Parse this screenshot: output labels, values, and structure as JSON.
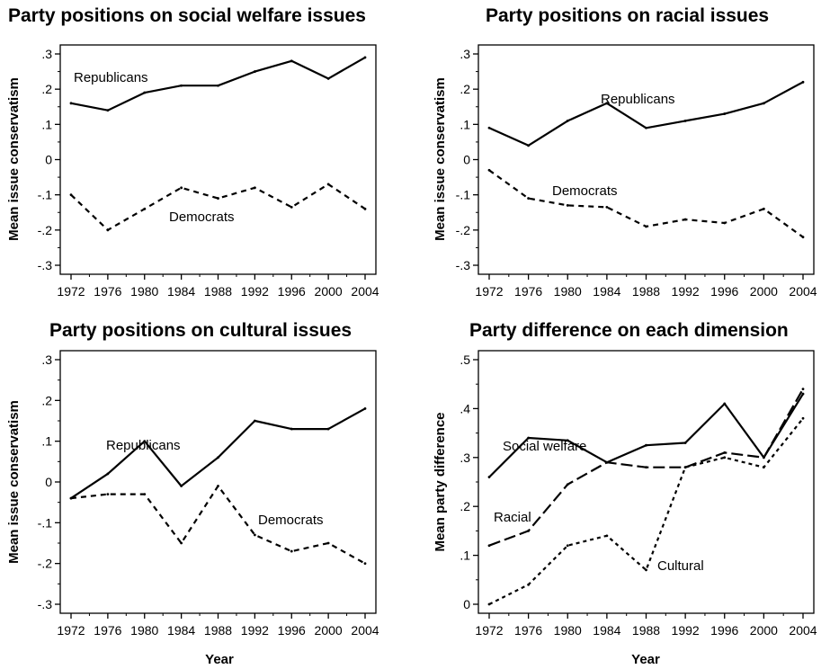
{
  "chart_data": [
    {
      "type": "line",
      "title": "Party positions on social welfare issues",
      "xlabel": "",
      "ylabel": "Mean issue conservatism",
      "x": [
        1972,
        1976,
        1980,
        1984,
        1988,
        1992,
        1996,
        2000,
        2004
      ],
      "ylim": [
        -0.3,
        0.3
      ],
      "yticks": [
        ".3",
        ".2",
        ".1",
        "0",
        "-.1",
        "-.2",
        "-.3"
      ],
      "series": [
        {
          "name": "Republicans",
          "style": "solid",
          "values": [
            0.16,
            0.14,
            0.19,
            0.21,
            0.21,
            0.25,
            0.28,
            0.23,
            0.29
          ]
        },
        {
          "name": "Democrats",
          "style": "dashed",
          "values": [
            -0.1,
            -0.2,
            -0.14,
            -0.08,
            -0.11,
            -0.08,
            -0.135,
            -0.07,
            -0.14
          ]
        }
      ]
    },
    {
      "type": "line",
      "title": "Party positions on racial issues",
      "xlabel": "",
      "ylabel": "Mean issue conservatism",
      "x": [
        1972,
        1976,
        1980,
        1984,
        1988,
        1992,
        1996,
        2000,
        2004
      ],
      "ylim": [
        -0.3,
        0.3
      ],
      "yticks": [
        ".3",
        ".2",
        ".1",
        "0",
        "-.1",
        "-.2",
        "-.3"
      ],
      "series": [
        {
          "name": "Republicans",
          "style": "solid",
          "values": [
            0.09,
            0.04,
            0.11,
            0.16,
            0.09,
            0.11,
            0.13,
            0.16,
            0.22
          ]
        },
        {
          "name": "Democrats",
          "style": "dashed",
          "values": [
            -0.03,
            -0.11,
            -0.13,
            -0.135,
            -0.19,
            -0.17,
            -0.18,
            -0.14,
            -0.22
          ]
        }
      ]
    },
    {
      "type": "line",
      "title": "Party positions on cultural issues",
      "xlabel": "Year",
      "ylabel": "Mean issue conservatism",
      "x": [
        1972,
        1976,
        1980,
        1984,
        1988,
        1992,
        1996,
        2000,
        2004
      ],
      "ylim": [
        -0.3,
        0.3
      ],
      "yticks": [
        ".3",
        ".2",
        ".1",
        "0",
        "-.1",
        "-.2",
        "-.3"
      ],
      "series": [
        {
          "name": "Republicans",
          "style": "solid",
          "values": [
            -0.04,
            0.02,
            0.1,
            -0.01,
            0.06,
            0.15,
            0.13,
            0.13,
            0.18
          ]
        },
        {
          "name": "Democrats",
          "style": "dashed",
          "values": [
            -0.04,
            -0.03,
            -0.03,
            -0.15,
            -0.01,
            -0.13,
            -0.17,
            -0.15,
            -0.2
          ]
        }
      ]
    },
    {
      "type": "line",
      "title": "Party difference on each dimension",
      "xlabel": "Year",
      "ylabel": "Mean party difference",
      "x": [
        1972,
        1976,
        1980,
        1984,
        1988,
        1992,
        1996,
        2000,
        2004
      ],
      "ylim": [
        0,
        0.5
      ],
      "yticks": [
        ".5",
        ".4",
        ".3",
        ".2",
        ".1",
        "0"
      ],
      "series": [
        {
          "name": "Social welfare",
          "style": "solid",
          "values": [
            0.26,
            0.34,
            0.335,
            0.29,
            0.325,
            0.33,
            0.41,
            0.3,
            0.43
          ]
        },
        {
          "name": "Racial",
          "style": "longdash",
          "values": [
            0.12,
            0.15,
            0.245,
            0.29,
            0.28,
            0.28,
            0.31,
            0.3,
            0.44
          ]
        },
        {
          "name": "Cultural",
          "style": "dotted",
          "values": [
            0.0,
            0.04,
            0.12,
            0.14,
            0.07,
            0.28,
            0.3,
            0.28,
            0.38
          ]
        }
      ]
    }
  ]
}
